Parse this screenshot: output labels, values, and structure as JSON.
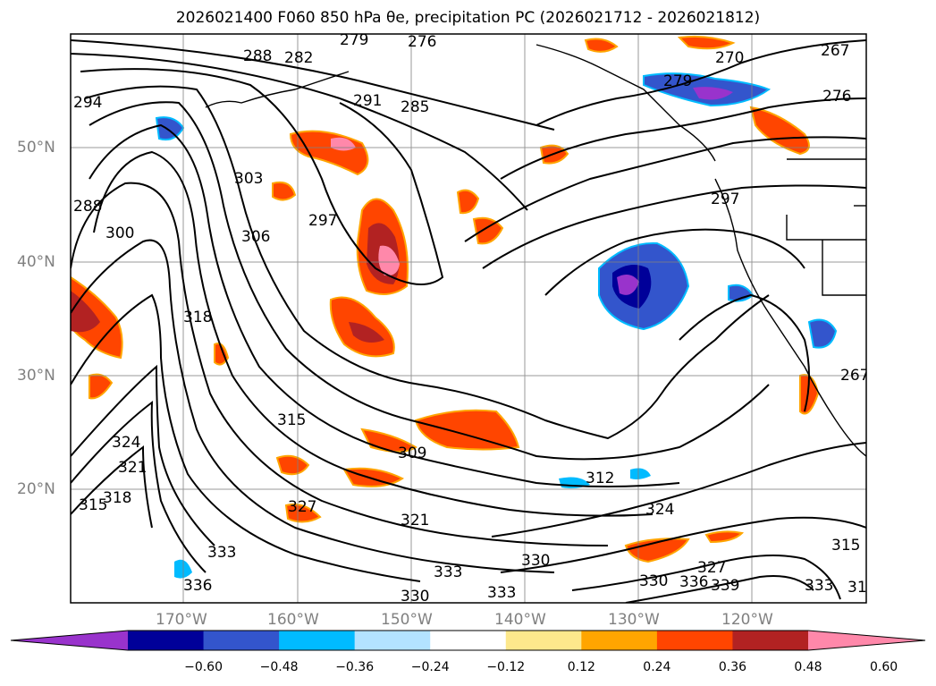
{
  "title": {
    "text": "2026021400 F060 850 hPa θe, precipitation PC (2026021712 - 2026021812)"
  },
  "map": {
    "region": "North Pacific",
    "lat_labels": [
      "50°N",
      "40°N",
      "30°N",
      "20°N"
    ],
    "lon_labels": [
      "170°W",
      "160°W",
      "150°W",
      "140°W",
      "130°W",
      "120°W"
    ],
    "contour_labels": [
      "276",
      "279",
      "279",
      "282",
      "285",
      "288",
      "288",
      "291",
      "294",
      "297",
      "297",
      "300",
      "303",
      "306",
      "309",
      "312",
      "315",
      "315",
      "318",
      "318",
      "321",
      "321",
      "324",
      "324",
      "327",
      "327",
      "330",
      "330",
      "330",
      "333",
      "333",
      "333",
      "333",
      "336",
      "336",
      "339",
      "267",
      "270",
      "276",
      "267",
      "315",
      "31"
    ],
    "colors": {
      "ocean": "#ffffff",
      "coast": "#000000",
      "grid": "#808080",
      "contour": "#000000"
    }
  },
  "colorbar": {
    "ticks": [
      "−0.60",
      "−0.48",
      "−0.36",
      "−0.24",
      "−0.12",
      "0.12",
      "0.24",
      "0.36",
      "0.48",
      "0.60"
    ],
    "bins": [
      {
        "color": "#9933cc"
      },
      {
        "color": "#000099"
      },
      {
        "color": "#3355cc"
      },
      {
        "color": "#00bbff"
      },
      {
        "color": "#b3e3ff"
      },
      {
        "color": "#ffffff"
      },
      {
        "color": "#fde88c"
      },
      {
        "color": "#ffa500"
      },
      {
        "color": "#ff4500"
      },
      {
        "color": "#b22222"
      },
      {
        "color": "#ff88aa"
      }
    ]
  }
}
